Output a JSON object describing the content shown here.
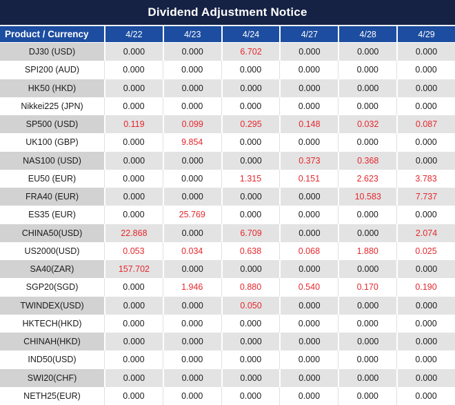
{
  "colors": {
    "title_bg": "#152244",
    "header_bg": "#1c4da0",
    "header_text": "#ffffff",
    "row_gray_label_bg": "#d2d2d2",
    "row_gray_value_bg": "#e3e3e3",
    "row_white_bg": "#ffffff",
    "value_text": "#1a1a1a",
    "highlight_text": "#e6262c"
  },
  "chart_data": {
    "type": "table",
    "title": "Dividend Adjustment Notice",
    "product_header": "Product / Currency",
    "date_columns": [
      "4/22",
      "4/23",
      "4/24",
      "4/27",
      "4/28",
      "4/29"
    ],
    "highlight_rule": "non-zero dividend values are rendered in red",
    "rows": [
      {
        "product": "DJ30 (USD)",
        "values": [
          "0.000",
          "0.000",
          "6.702",
          "0.000",
          "0.000",
          "0.000"
        ]
      },
      {
        "product": "SPI200 (AUD)",
        "values": [
          "0.000",
          "0.000",
          "0.000",
          "0.000",
          "0.000",
          "0.000"
        ]
      },
      {
        "product": "HK50 (HKD)",
        "values": [
          "0.000",
          "0.000",
          "0.000",
          "0.000",
          "0.000",
          "0.000"
        ]
      },
      {
        "product": "Nikkei225 (JPN)",
        "values": [
          "0.000",
          "0.000",
          "0.000",
          "0.000",
          "0.000",
          "0.000"
        ]
      },
      {
        "product": "SP500 (USD)",
        "values": [
          "0.119",
          "0.099",
          "0.295",
          "0.148",
          "0.032",
          "0.087"
        ]
      },
      {
        "product": "UK100 (GBP)",
        "values": [
          "0.000",
          "9.854",
          "0.000",
          "0.000",
          "0.000",
          "0.000"
        ]
      },
      {
        "product": "NAS100 (USD)",
        "values": [
          "0.000",
          "0.000",
          "0.000",
          "0.373",
          "0.368",
          "0.000"
        ]
      },
      {
        "product": "EU50 (EUR)",
        "values": [
          "0.000",
          "0.000",
          "1.315",
          "0.151",
          "2.623",
          "3.783"
        ]
      },
      {
        "product": "FRA40 (EUR)",
        "values": [
          "0.000",
          "0.000",
          "0.000",
          "0.000",
          "10.583",
          "7.737"
        ]
      },
      {
        "product": "ES35 (EUR)",
        "values": [
          "0.000",
          "25.769",
          "0.000",
          "0.000",
          "0.000",
          "0.000"
        ]
      },
      {
        "product": "CHINA50(USD)",
        "values": [
          "22.868",
          "0.000",
          "6.709",
          "0.000",
          "0.000",
          "2.074"
        ]
      },
      {
        "product": "US2000(USD)",
        "values": [
          "0.053",
          "0.034",
          "0.638",
          "0.068",
          "1.880",
          "0.025"
        ]
      },
      {
        "product": "SA40(ZAR)",
        "values": [
          "157.702",
          "0.000",
          "0.000",
          "0.000",
          "0.000",
          "0.000"
        ]
      },
      {
        "product": "SGP20(SGD)",
        "values": [
          "0.000",
          "1.946",
          "0.880",
          "0.540",
          "0.170",
          "0.190"
        ]
      },
      {
        "product": "TWINDEX(USD)",
        "values": [
          "0.000",
          "0.000",
          "0.050",
          "0.000",
          "0.000",
          "0.000"
        ]
      },
      {
        "product": "HKTECH(HKD)",
        "values": [
          "0.000",
          "0.000",
          "0.000",
          "0.000",
          "0.000",
          "0.000"
        ]
      },
      {
        "product": "CHINAH(HKD)",
        "values": [
          "0.000",
          "0.000",
          "0.000",
          "0.000",
          "0.000",
          "0.000"
        ]
      },
      {
        "product": "IND50(USD)",
        "values": [
          "0.000",
          "0.000",
          "0.000",
          "0.000",
          "0.000",
          "0.000"
        ]
      },
      {
        "product": "SWI20(CHF)",
        "values": [
          "0.000",
          "0.000",
          "0.000",
          "0.000",
          "0.000",
          "0.000"
        ]
      },
      {
        "product": "NETH25(EUR)",
        "values": [
          "0.000",
          "0.000",
          "0.000",
          "0.000",
          "0.000",
          "0.000"
        ]
      }
    ]
  }
}
